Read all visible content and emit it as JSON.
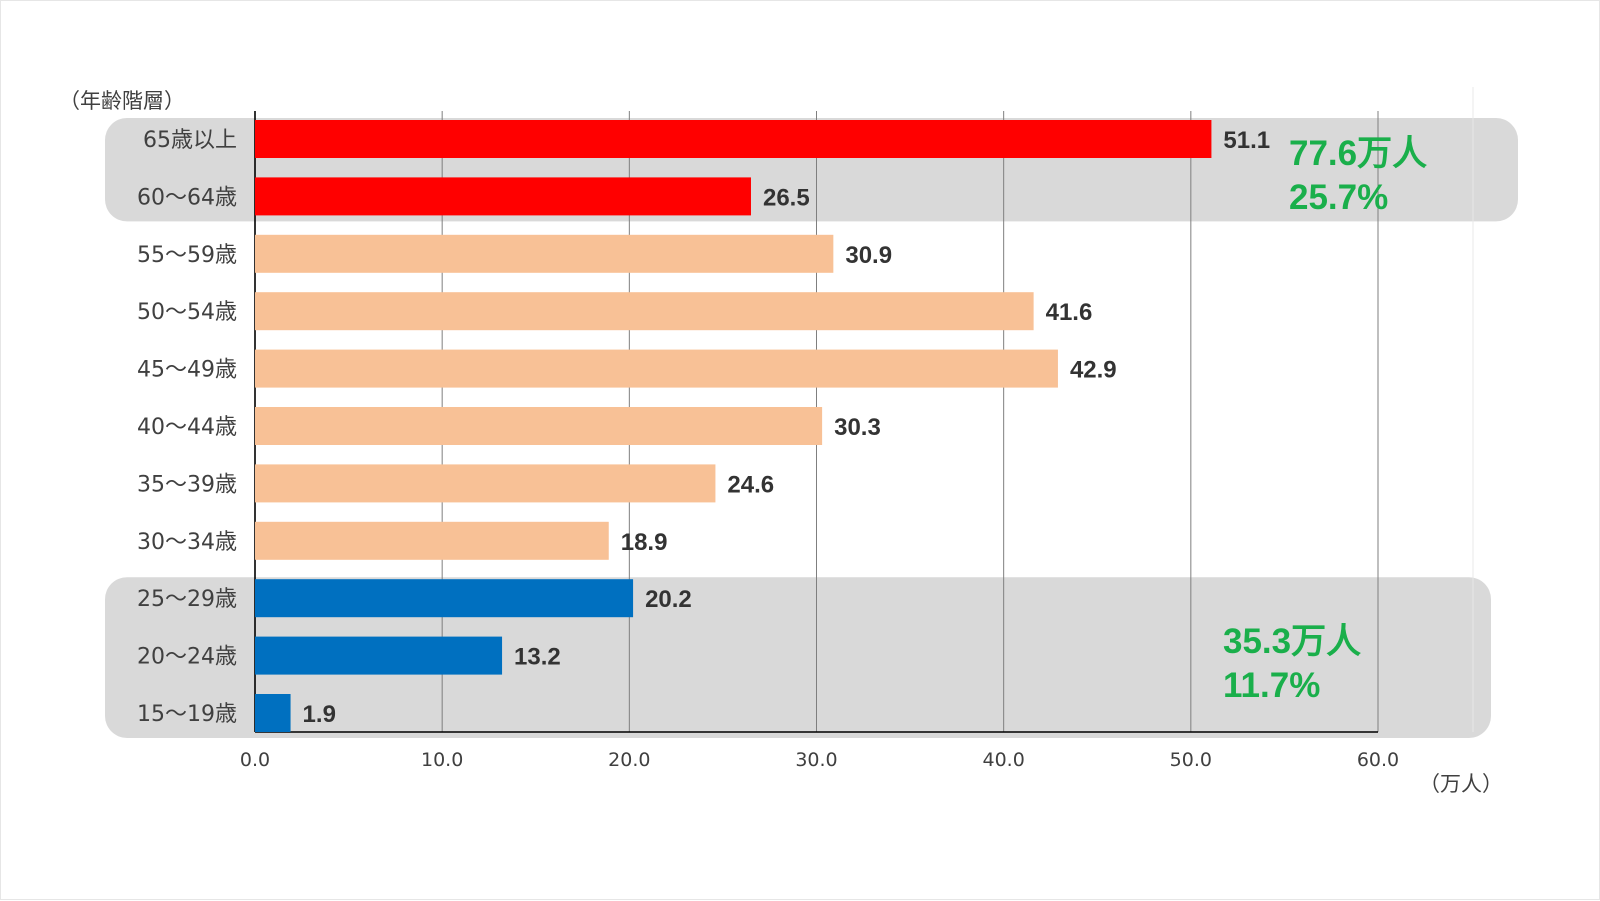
{
  "chart_data": {
    "type": "bar",
    "orientation": "horizontal",
    "y_axis_title": "（年齢階層）",
    "x_unit_label": "（万人）",
    "xlim": [
      0,
      60
    ],
    "xticks": [
      "0.0",
      "10.0",
      "20.0",
      "30.0",
      "40.0",
      "50.0",
      "60.0"
    ],
    "grid": "vertical",
    "categories": [
      "65歳以上",
      "60～64歳",
      "55～59歳",
      "50～54歳",
      "45～49歳",
      "40～44歳",
      "35～39歳",
      "30～34歳",
      "25～29歳",
      "20～24歳",
      "15～19歳"
    ],
    "values": [
      51.1,
      26.5,
      30.9,
      41.6,
      42.9,
      30.3,
      24.6,
      18.9,
      20.2,
      13.2,
      1.9
    ],
    "value_labels": [
      "51.1",
      "26.5",
      "30.9",
      "41.6",
      "42.9",
      "30.3",
      "24.6",
      "18.9",
      "20.2",
      "13.2",
      "1.9"
    ],
    "bar_colors": [
      "#ff0000",
      "#ff0000",
      "#f8c196",
      "#f8c196",
      "#f8c196",
      "#f8c196",
      "#f8c196",
      "#f8c196",
      "#0070c0",
      "#0070c0",
      "#0070c0"
    ],
    "groups": [
      {
        "categories": [
          "65歳以上",
          "60～64歳"
        ],
        "total_label": "77.6万人",
        "share_label": "25.7%",
        "label_color": "#1aaf4b"
      },
      {
        "categories": [
          "25～29歳",
          "20～24歳",
          "15～19歳"
        ],
        "total_label": "35.3万人",
        "share_label": "11.7%",
        "label_color": "#1aaf4b"
      }
    ]
  }
}
